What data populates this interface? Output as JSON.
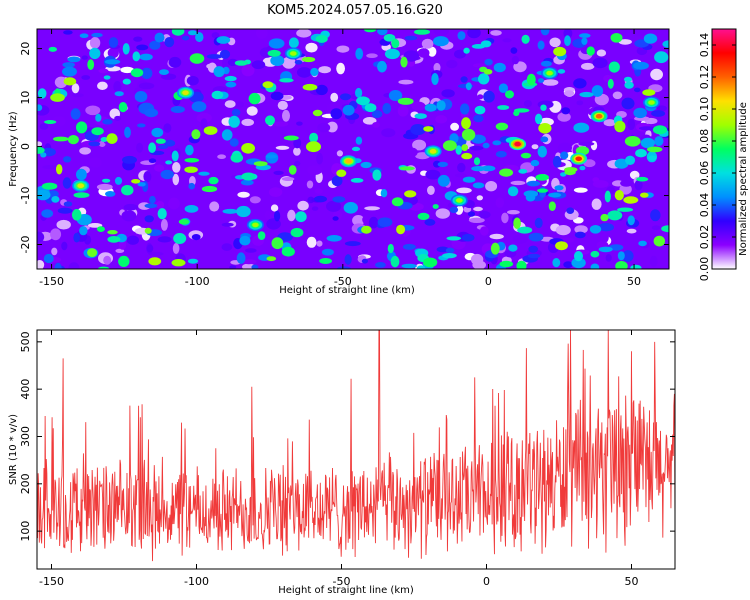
{
  "title": "KOM5.2024.057.05.16.G20",
  "chart_data": [
    {
      "type": "heatmap",
      "xlabel": "Height of straight line (km)",
      "ylabel": "Frequency (Hz)",
      "xlim": [
        -155,
        62
      ],
      "ylim": [
        -25,
        24
      ],
      "x_ticks": [
        -150,
        -100,
        -50,
        0,
        50
      ],
      "x_tick_labels": [
        "-150",
        "-100",
        "-50",
        "0",
        "50"
      ],
      "y_ticks": [
        -20,
        -10,
        0,
        10,
        20
      ],
      "y_tick_labels": [
        "-20",
        "-10",
        "0",
        "10",
        "20"
      ],
      "colorbar": {
        "label": "Normalized spectral amplitude",
        "range": [
          0,
          0.15
        ],
        "ticks": [
          0.0,
          0.02,
          0.04,
          0.06,
          0.08,
          0.1,
          0.12,
          0.14
        ],
        "tick_labels": [
          "0.00",
          "0.02",
          "0.04",
          "0.06",
          "0.08",
          "0.10",
          "0.12",
          "0.14"
        ],
        "colormap": [
          "#ffffff",
          "#8b00ff",
          "#3000ff",
          "#0090ff",
          "#00e0e0",
          "#00ff60",
          "#a0ff00",
          "#ffe000",
          "#ff6000",
          "#ff0000",
          "#ff1090"
        ]
      },
      "hotspots": [
        {
          "x": 10,
          "y": 0.5,
          "value": 0.14
        },
        {
          "x": 31,
          "y": -2.5,
          "value": 0.13
        },
        {
          "x": 38,
          "y": 6.2,
          "value": 0.12
        },
        {
          "x": -48,
          "y": -3,
          "value": 0.11
        },
        {
          "x": -104,
          "y": 11,
          "value": 0.1
        },
        {
          "x": -140,
          "y": -8,
          "value": 0.1
        },
        {
          "x": -80,
          "y": -16,
          "value": 0.09
        },
        {
          "x": -19,
          "y": -1,
          "value": 0.1
        },
        {
          "x": 21,
          "y": 15,
          "value": 0.09
        },
        {
          "x": -67,
          "y": 19,
          "value": 0.09
        },
        {
          "x": -10,
          "y": -11,
          "value": 0.09
        },
        {
          "x": 56,
          "y": 9,
          "value": 0.09
        }
      ]
    },
    {
      "type": "line",
      "xlabel": "Height of straight line (km)",
      "ylabel": "SNR (10 * v/v)",
      "xlim": [
        -155,
        65
      ],
      "ylim": [
        20,
        525
      ],
      "x_ticks": [
        -150,
        -100,
        -50,
        0,
        50
      ],
      "x_tick_labels": [
        "-150",
        "-100",
        "-50",
        "0",
        "50"
      ],
      "y_ticks": [
        100,
        200,
        300,
        400,
        500
      ],
      "y_tick_labels": [
        "100",
        "200",
        "300",
        "400",
        "500"
      ],
      "series": [
        {
          "color": "#f03a3a",
          "x_start": -155,
          "x_end": 65,
          "baseline": [
            [
              -155,
              150
            ],
            [
              -100,
              140
            ],
            [
              -50,
              145
            ],
            [
              0,
              170
            ],
            [
              30,
              215
            ],
            [
              65,
              230
            ]
          ],
          "spread": [
            [
              -155,
              100
            ],
            [
              -100,
              90
            ],
            [
              -50,
              95
            ],
            [
              0,
              110
            ],
            [
              30,
              140
            ],
            [
              65,
              150
            ]
          ],
          "peaks": [
            {
              "x": -146,
              "y": 465
            },
            {
              "x": -120,
              "y": 365
            },
            {
              "x": -81,
              "y": 405
            },
            {
              "x": -37,
              "y": 525
            },
            {
              "x": 29,
              "y": 525
            },
            {
              "x": 42,
              "y": 525
            },
            {
              "x": 50,
              "y": 480
            },
            {
              "x": 58,
              "y": 500
            }
          ]
        }
      ]
    }
  ]
}
